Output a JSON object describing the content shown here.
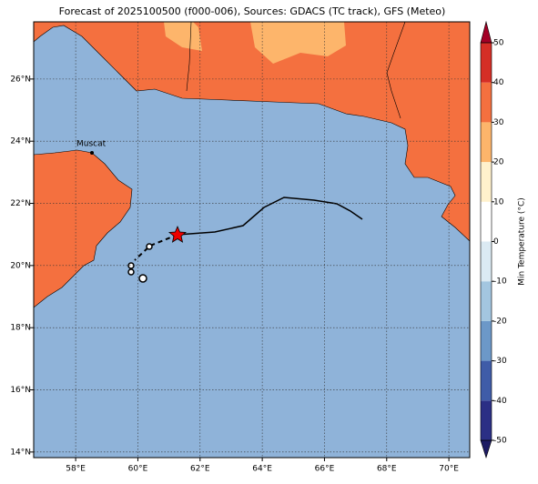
{
  "title": "Forecast of 2025100500 (f000-006), Sources: GDACS (TC track), GFS (Meteo)",
  "place_label": "Muscat",
  "lon_ticks": [
    {
      "value": 58,
      "label": "58°E"
    },
    {
      "value": 60,
      "label": "60°E"
    },
    {
      "value": 62,
      "label": "62°E"
    },
    {
      "value": 64,
      "label": "64°E"
    },
    {
      "value": 66,
      "label": "66°E"
    },
    {
      "value": 68,
      "label": "68°E"
    },
    {
      "value": 70,
      "label": "70°E"
    }
  ],
  "lat_ticks": [
    {
      "value": 14,
      "label": "14°N"
    },
    {
      "value": 16,
      "label": "16°N"
    },
    {
      "value": 18,
      "label": "18°N"
    },
    {
      "value": 20,
      "label": "20°N"
    },
    {
      "value": 22,
      "label": "22°N"
    },
    {
      "value": 24,
      "label": "24°N"
    },
    {
      "value": 26,
      "label": "26°N"
    }
  ],
  "lonlim": [
    56.65,
    70.67
  ],
  "latlim": [
    13.82,
    27.84
  ],
  "colorbar": {
    "label": "Min Temperature (°C)",
    "ticks": [
      -50,
      -40,
      -30,
      -20,
      -10,
      0,
      10,
      20,
      30,
      40,
      50
    ],
    "colors": [
      "#2b2f85",
      "#3f5ca8",
      "#6c98c8",
      "#a3c6e0",
      "#dbeaf3",
      "#ffffff",
      "#fff1cc",
      "#fdb56b",
      "#f4703f",
      "#d52e26"
    ],
    "under_color": "#1d1b63",
    "over_color": "#a30026"
  }
}
